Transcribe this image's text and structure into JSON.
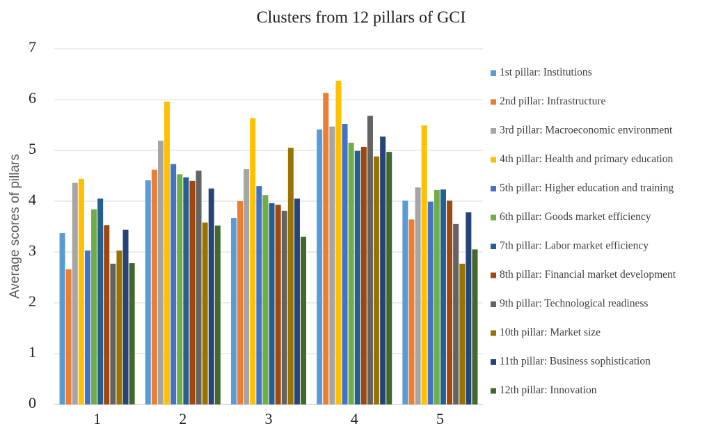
{
  "chart_data": {
    "type": "bar",
    "title": "Clusters from 12 pillars  of GCI",
    "ylabel": "Average scores of pillars",
    "categories": [
      "1",
      "2",
      "3",
      "4",
      "5"
    ],
    "ylim": [
      0,
      7
    ],
    "yticks": [
      0,
      1,
      2,
      3,
      4,
      5,
      6,
      7
    ],
    "grid": true,
    "legend": "right",
    "series": [
      {
        "name": "1st pillar: Institutions",
        "color": "#5b9bd5",
        "values": [
          3.37,
          4.41,
          3.67,
          5.41,
          4.01
        ]
      },
      {
        "name": "2nd pillar: Infrastructure",
        "color": "#ed7d31",
        "values": [
          2.66,
          4.62,
          4.0,
          6.13,
          3.64
        ]
      },
      {
        "name": "3rd pillar: Macroeconomic environment",
        "color": "#a5a5a5",
        "values": [
          4.36,
          5.19,
          4.63,
          5.47,
          4.27
        ]
      },
      {
        "name": "4th pillar: Health and primary education",
        "color": "#ffc000",
        "values": [
          4.44,
          5.96,
          5.63,
          6.37,
          5.49
        ]
      },
      {
        "name": "5th pillar: Higher education and training",
        "color": "#4472c4",
        "values": [
          3.03,
          4.73,
          4.3,
          5.52,
          3.99
        ]
      },
      {
        "name": "6th pillar: Goods market efficiency",
        "color": "#70ad47",
        "values": [
          3.84,
          4.53,
          4.12,
          5.15,
          4.22
        ]
      },
      {
        "name": "7th pillar: Labor market efficiency",
        "color": "#255e91",
        "values": [
          4.05,
          4.47,
          3.96,
          4.99,
          4.23
        ]
      },
      {
        "name": "8th pillar: Financial market development",
        "color": "#9e480e",
        "values": [
          3.53,
          4.4,
          3.93,
          5.07,
          4.01
        ]
      },
      {
        "name": "9th pillar: Technological readiness",
        "color": "#636363",
        "values": [
          2.77,
          4.6,
          3.81,
          5.68,
          3.55
        ]
      },
      {
        "name": "10th pillar: Market size",
        "color": "#997300",
        "values": [
          3.03,
          3.58,
          5.05,
          4.88,
          2.77
        ]
      },
      {
        "name": "11th pillar: Business sophistication",
        "color": "#264478",
        "values": [
          3.44,
          4.25,
          4.05,
          5.27,
          3.78
        ]
      },
      {
        "name": "12th pillar: Innovation",
        "color": "#43682b",
        "values": [
          2.78,
          3.52,
          3.3,
          4.97,
          3.05
        ]
      }
    ]
  }
}
